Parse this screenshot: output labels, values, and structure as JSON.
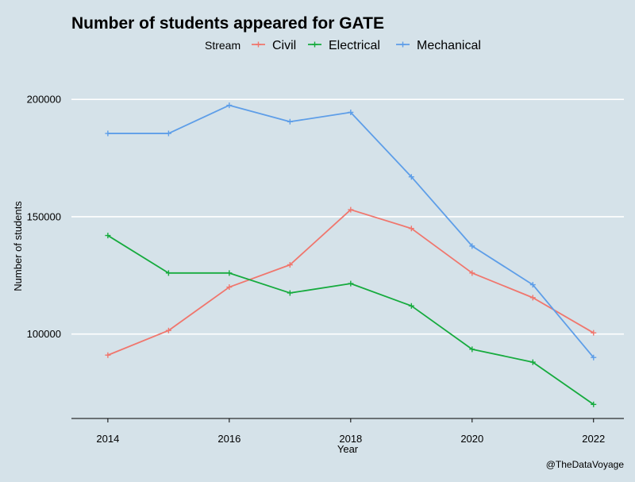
{
  "chart_data": {
    "type": "line",
    "title": "Number of students appeared for GATE",
    "xlabel": "Year",
    "ylabel": "Number of students",
    "caption": "@TheDataVoyage",
    "legend_title": "Stream",
    "legend_position": "top",
    "x": [
      2014,
      2015,
      2016,
      2017,
      2018,
      2019,
      2020,
      2021,
      2022
    ],
    "x_ticks": [
      2014,
      2016,
      2018,
      2020,
      2022
    ],
    "y_ticks": [
      100000,
      150000,
      200000
    ],
    "xlim": [
      2013.4,
      2022.5
    ],
    "ylim": [
      64000,
      217000
    ],
    "grid": true,
    "series": [
      {
        "name": "Civil",
        "color": "#f0766d",
        "values": [
          91000,
          101500,
          120000,
          129500,
          153000,
          145000,
          126000,
          115500,
          100500
        ]
      },
      {
        "name": "Electrical",
        "color": "#16ab3e",
        "values": [
          142000,
          126000,
          126000,
          117500,
          121500,
          112000,
          93500,
          88000,
          70000
        ]
      },
      {
        "name": "Mechanical",
        "color": "#5e9ee8",
        "values": [
          185500,
          185500,
          197500,
          190500,
          194500,
          167000,
          137500,
          121000,
          90000
        ]
      }
    ]
  }
}
